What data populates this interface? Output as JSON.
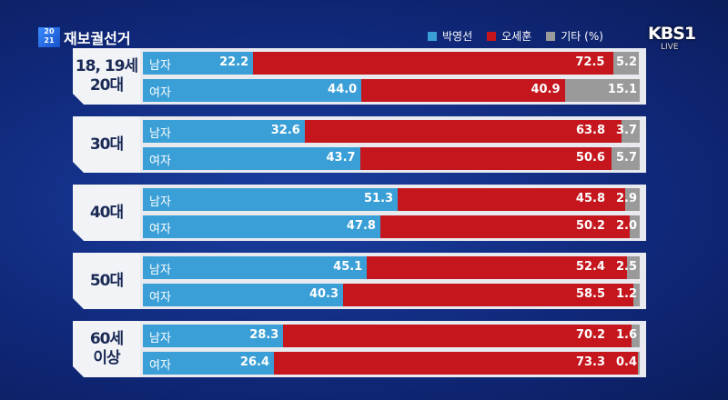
{
  "header": {
    "logo": "2021",
    "title": "재보궐선거",
    "broadcaster": "KBS1",
    "live": "LIVE"
  },
  "chart_data": {
    "type": "stacked-bar-horizontal",
    "unit": "%",
    "legend": [
      {
        "name": "박영선",
        "color": "#3a9fd6"
      },
      {
        "name": "오세훈",
        "color": "#c4161c"
      },
      {
        "name": "기타 (%)",
        "color": "#9a9a9a"
      }
    ],
    "legend_placement": "top-right",
    "groups": [
      {
        "label": "18, 19세 20대",
        "rows": [
          {
            "label": "남자",
            "values": [
              22.2,
              72.5,
              5.2
            ]
          },
          {
            "label": "여자",
            "values": [
              44.0,
              40.9,
              15.1
            ]
          }
        ]
      },
      {
        "label": "30대",
        "rows": [
          {
            "label": "남자",
            "values": [
              32.6,
              63.8,
              3.7
            ]
          },
          {
            "label": "여자",
            "values": [
              43.7,
              50.6,
              5.7
            ]
          }
        ]
      },
      {
        "label": "40대",
        "rows": [
          {
            "label": "남자",
            "values": [
              51.3,
              45.8,
              2.9
            ]
          },
          {
            "label": "여자",
            "values": [
              47.8,
              50.2,
              2.0
            ]
          }
        ]
      },
      {
        "label": "50대",
        "rows": [
          {
            "label": "남자",
            "values": [
              45.1,
              52.4,
              2.5
            ]
          },
          {
            "label": "여자",
            "values": [
              40.3,
              58.5,
              1.2
            ]
          }
        ]
      },
      {
        "label": "60세 이상",
        "rows": [
          {
            "label": "남자",
            "values": [
              28.3,
              70.2,
              1.6
            ]
          },
          {
            "label": "여자",
            "values": [
              26.4,
              73.3,
              0.4
            ]
          }
        ]
      }
    ]
  }
}
